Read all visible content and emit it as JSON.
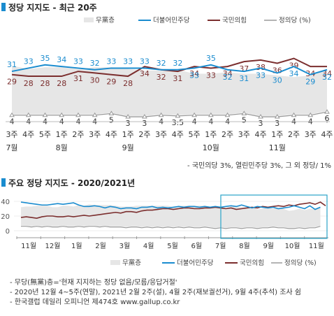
{
  "colors": {
    "minjoo": "#1a8ccf",
    "ppp": "#7b2e2e",
    "justice": "#9a9a9a",
    "none_fill": "#e6e6e6",
    "title_marker": "#1a8ccf",
    "highlight_box": "#2aa3c8"
  },
  "chart_data": [
    {
      "type": "line",
      "title": "정당 지지도 - 최근 20주",
      "footnote": "- 국민의당 3%, 열린민주당 3%, 그 외 정당/ 1%",
      "legend": {
        "placement": "top-right",
        "entries": [
          "무黨층",
          "더불어민주당",
          "국민의힘",
          "정의당 (%)"
        ]
      },
      "categories": [
        "3주",
        "4주",
        "5주",
        "1주",
        "2주",
        "3주",
        "4주",
        "1주",
        "2주",
        "3주",
        "4주",
        "5주",
        "1주",
        "2주",
        "3주",
        "4주",
        "1주",
        "2주",
        "3주",
        "4주"
      ],
      "month_labels": [
        {
          "label": "7월",
          "index": 0
        },
        {
          "label": "8월",
          "index": 3
        },
        {
          "label": "9월",
          "index": 7
        },
        {
          "label": "10월",
          "index": 12
        },
        {
          "label": "11월",
          "index": 16
        }
      ],
      "series": [
        {
          "name": "더불어민주당",
          "values": [
            31,
            33,
            35,
            34,
            33,
            32,
            33,
            33,
            33,
            32,
            32,
            33,
            35,
            32,
            31,
            33,
            30,
            34,
            29,
            32
          ]
        },
        {
          "name": "국민의힘",
          "values": [
            29,
            28,
            28,
            28,
            31,
            30,
            29,
            28,
            34,
            32,
            31,
            34,
            33,
            34,
            37,
            38,
            36,
            39,
            34,
            34
          ]
        },
        {
          "name": "정의당",
          "values": [
            4,
            4,
            4,
            4,
            4,
            4,
            5,
            3,
            3,
            4,
            3.5,
            4,
            4,
            4,
            5,
            3,
            3,
            4,
            4,
            6
          ]
        },
        {
          "name": "무黨층",
          "values": [
            30,
            28,
            29,
            29,
            28,
            29,
            28,
            29,
            28,
            27,
            28,
            25,
            25,
            26,
            24,
            26,
            25,
            23,
            24,
            25
          ]
        }
      ],
      "ylim": [
        0,
        45
      ]
    },
    {
      "type": "line",
      "title": "주요 정당 지지도 - 2020/2021년",
      "legend": {
        "placement": "bottom",
        "entries": [
          "무黨층",
          "더불어민주당",
          "국민의힘",
          "정의당 (%)"
        ]
      },
      "yticks": [
        0,
        20,
        40
      ],
      "ylim": [
        0,
        45
      ],
      "months": [
        "11월",
        "12월",
        "1월",
        "2월",
        "3월",
        "4월",
        "5월",
        "6월",
        "7월",
        "8월",
        "9월",
        "10월",
        "11월"
      ],
      "series": [
        {
          "name": "더불어민주당",
          "values": [
            39,
            38,
            37,
            36,
            35,
            35,
            36,
            37,
            36,
            37,
            38,
            35,
            33,
            33,
            34,
            33,
            31,
            33,
            32,
            30,
            31,
            31,
            30,
            32,
            32,
            33,
            31,
            32,
            31,
            32,
            33,
            32,
            33,
            33,
            32,
            33,
            32,
            33,
            32,
            33,
            34,
            33,
            35,
            33,
            31,
            33,
            32,
            31,
            32,
            30,
            31,
            32,
            34,
            32,
            30,
            34,
            29,
            32
          ]
        },
        {
          "name": "국민의힘",
          "values": [
            18,
            19,
            18,
            17,
            19,
            20,
            20,
            19,
            19,
            20,
            19,
            20,
            21,
            20,
            21,
            22,
            23,
            24,
            25,
            24,
            26,
            26,
            25,
            27,
            28,
            28,
            29,
            30,
            30,
            29,
            30,
            31,
            31,
            30,
            30,
            31,
            31,
            32,
            31,
            30,
            31,
            29,
            30,
            31,
            32,
            31,
            33,
            32,
            33,
            34,
            33,
            35,
            34,
            36,
            37,
            38,
            36,
            39,
            34
          ]
        },
        {
          "name": "정의당",
          "values": [
            6,
            6,
            5,
            6,
            5,
            6,
            5,
            5,
            6,
            5,
            5,
            6,
            5,
            6,
            6,
            5,
            6,
            5,
            5,
            5,
            4,
            5,
            5,
            4,
            5,
            4,
            5,
            4,
            5,
            4,
            5,
            4,
            5,
            4,
            4,
            5,
            4,
            3,
            4,
            3,
            4,
            4,
            3,
            4,
            4,
            3,
            4,
            4,
            5,
            4,
            4,
            3,
            3,
            4,
            3,
            4,
            4,
            6
          ]
        },
        {
          "name": "무黨층",
          "values": [
            25,
            26,
            27,
            27,
            28,
            27,
            26,
            26,
            27,
            28,
            27,
            28,
            28,
            29,
            28,
            29,
            28,
            29,
            28,
            27,
            28,
            27,
            28,
            29,
            28,
            29,
            28,
            29,
            28,
            27,
            28,
            29,
            28,
            29,
            29,
            28,
            28,
            27,
            28,
            27,
            28,
            29,
            28,
            27,
            28,
            25,
            25,
            26,
            24,
            26,
            25,
            23,
            24,
            25,
            24,
            25,
            24,
            25
          ]
        }
      ],
      "gaps": [
        {
          "after_month": "12월"
        },
        {
          "after_month": "2월"
        },
        {
          "after_month": "4월"
        }
      ]
    }
  ],
  "notes": [
    "- 무당(無黨)층='현재 지지하는 정당 없음/모름/응답거절'",
    "- 2020년 12월 4~5주(연말), 2021년 2월 2주(설), 4월 2주(재보궐선거), 9월 4주(추석) 조사 쉼",
    "- 한국갤럽 데일리 오피니언 제474호 www.gallup.co.kr"
  ]
}
